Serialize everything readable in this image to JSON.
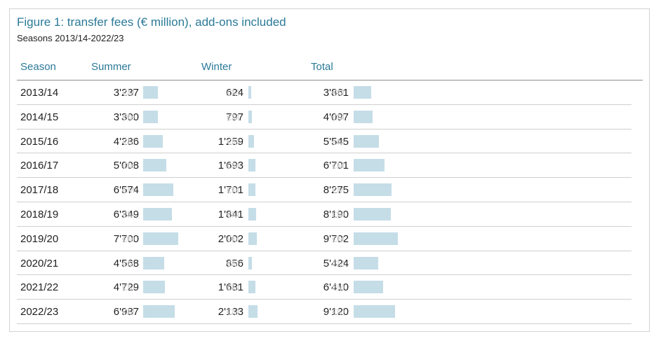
{
  "title": "Figure 1: transfer fees (€ million), add-ons included",
  "subtitle": "Seasons 2013/14-2022/23",
  "columns": {
    "season": "Season",
    "summer": "Summer",
    "winter": "Winter",
    "total": "Total"
  },
  "unit": "€M",
  "colors": {
    "accent": "#2b7a98",
    "bar": "#c5dde7",
    "unit": "#d6d6d6"
  },
  "chart_data": {
    "type": "table",
    "title": "Figure 1: transfer fees (€ million), add-ons included",
    "subtitle": "Seasons 2013/14-2022/23",
    "columns": [
      "Season",
      "Summer",
      "Winter",
      "Total"
    ],
    "unit": "€M",
    "rows": [
      {
        "season": "2013/14",
        "summer": 3237,
        "winter": 624,
        "total": 3861,
        "summer_label": "3'237",
        "winter_label": "624",
        "total_label": "3'861"
      },
      {
        "season": "2014/15",
        "summer": 3300,
        "winter": 797,
        "total": 4097,
        "summer_label": "3'300",
        "winter_label": "797",
        "total_label": "4'097"
      },
      {
        "season": "2015/16",
        "summer": 4286,
        "winter": 1259,
        "total": 5545,
        "summer_label": "4'286",
        "winter_label": "1'259",
        "total_label": "5'545"
      },
      {
        "season": "2016/17",
        "summer": 5008,
        "winter": 1693,
        "total": 6701,
        "summer_label": "5'008",
        "winter_label": "1'693",
        "total_label": "6'701"
      },
      {
        "season": "2017/18",
        "summer": 6574,
        "winter": 1701,
        "total": 8275,
        "summer_label": "6'574",
        "winter_label": "1'701",
        "total_label": "8'275"
      },
      {
        "season": "2018/19",
        "summer": 6349,
        "winter": 1841,
        "total": 8190,
        "summer_label": "6'349",
        "winter_label": "1'841",
        "total_label": "8'190"
      },
      {
        "season": "2019/20",
        "summer": 7700,
        "winter": 2002,
        "total": 9702,
        "summer_label": "7'700",
        "winter_label": "2'002",
        "total_label": "9'702"
      },
      {
        "season": "2020/21",
        "summer": 4568,
        "winter": 856,
        "total": 5424,
        "summer_label": "4'568",
        "winter_label": "856",
        "total_label": "5'424"
      },
      {
        "season": "2021/22",
        "summer": 4729,
        "winter": 1681,
        "total": 6410,
        "summer_label": "4'729",
        "winter_label": "1'681",
        "total_label": "6'410"
      },
      {
        "season": "2022/23",
        "summer": 6987,
        "winter": 2133,
        "total": 9120,
        "summer_label": "6'987",
        "winter_label": "2'133",
        "total_label": "9'120"
      }
    ]
  }
}
